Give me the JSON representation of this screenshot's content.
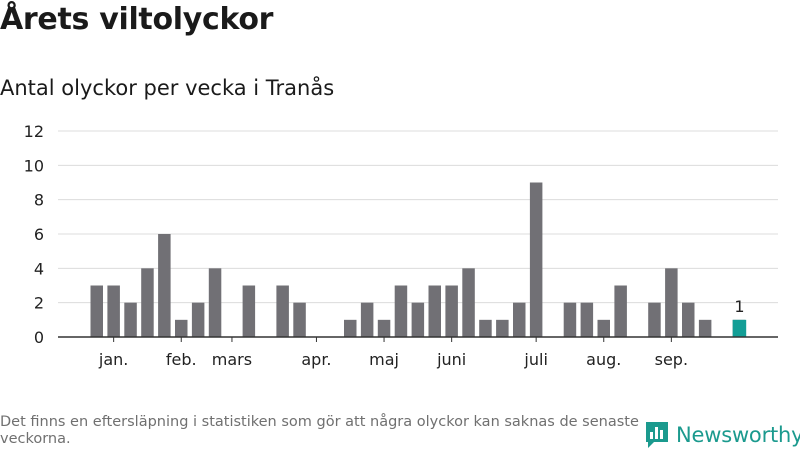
{
  "title": "Årets viltolyckor",
  "subtitle": "Antal olyckor per vecka i Tranås",
  "footnote": "Det finns en eftersläpning i statistiken som gör att några olyckor kan saknas de senaste veckorna.",
  "brand": {
    "name": "Newsworthy",
    "icon": "bar-chart-logo-icon",
    "color": "#1b9a8e"
  },
  "chart_data": {
    "type": "bar",
    "ylim": [
      0,
      12
    ],
    "yticks": [
      0,
      2,
      4,
      6,
      8,
      10,
      12
    ],
    "grid": true,
    "legend": "none",
    "colors": {
      "bar": "#717075",
      "highlight": "#139e96",
      "grid": "#dcdcdc",
      "axis": "#333333"
    },
    "weeks": [
      1,
      2,
      3,
      4,
      5,
      6,
      7,
      8,
      9,
      10,
      11,
      12,
      13,
      14,
      15,
      16,
      17,
      18,
      19,
      20,
      21,
      22,
      23,
      24,
      25,
      26,
      27,
      28,
      29,
      30,
      31,
      32,
      33,
      34,
      35,
      36,
      37,
      38,
      39,
      40
    ],
    "values": [
      3,
      3,
      2,
      4,
      6,
      1,
      2,
      4,
      0,
      3,
      0,
      3,
      2,
      0,
      0,
      1,
      2,
      1,
      3,
      2,
      3,
      3,
      4,
      1,
      1,
      2,
      9,
      0,
      2,
      2,
      1,
      3,
      0,
      2,
      4,
      2,
      1,
      0,
      1,
      null
    ],
    "highlight": {
      "week": 39,
      "value": 1,
      "label": "1"
    },
    "month_labels": [
      {
        "label": "jan.",
        "week": 2
      },
      {
        "label": "feb.",
        "week": 6
      },
      {
        "label": "mars",
        "week": 9
      },
      {
        "label": "apr.",
        "week": 14
      },
      {
        "label": "maj",
        "week": 18
      },
      {
        "label": "juni",
        "week": 22
      },
      {
        "label": "juli",
        "week": 27
      },
      {
        "label": "aug.",
        "week": 31
      },
      {
        "label": "sep.",
        "week": 35
      }
    ]
  }
}
